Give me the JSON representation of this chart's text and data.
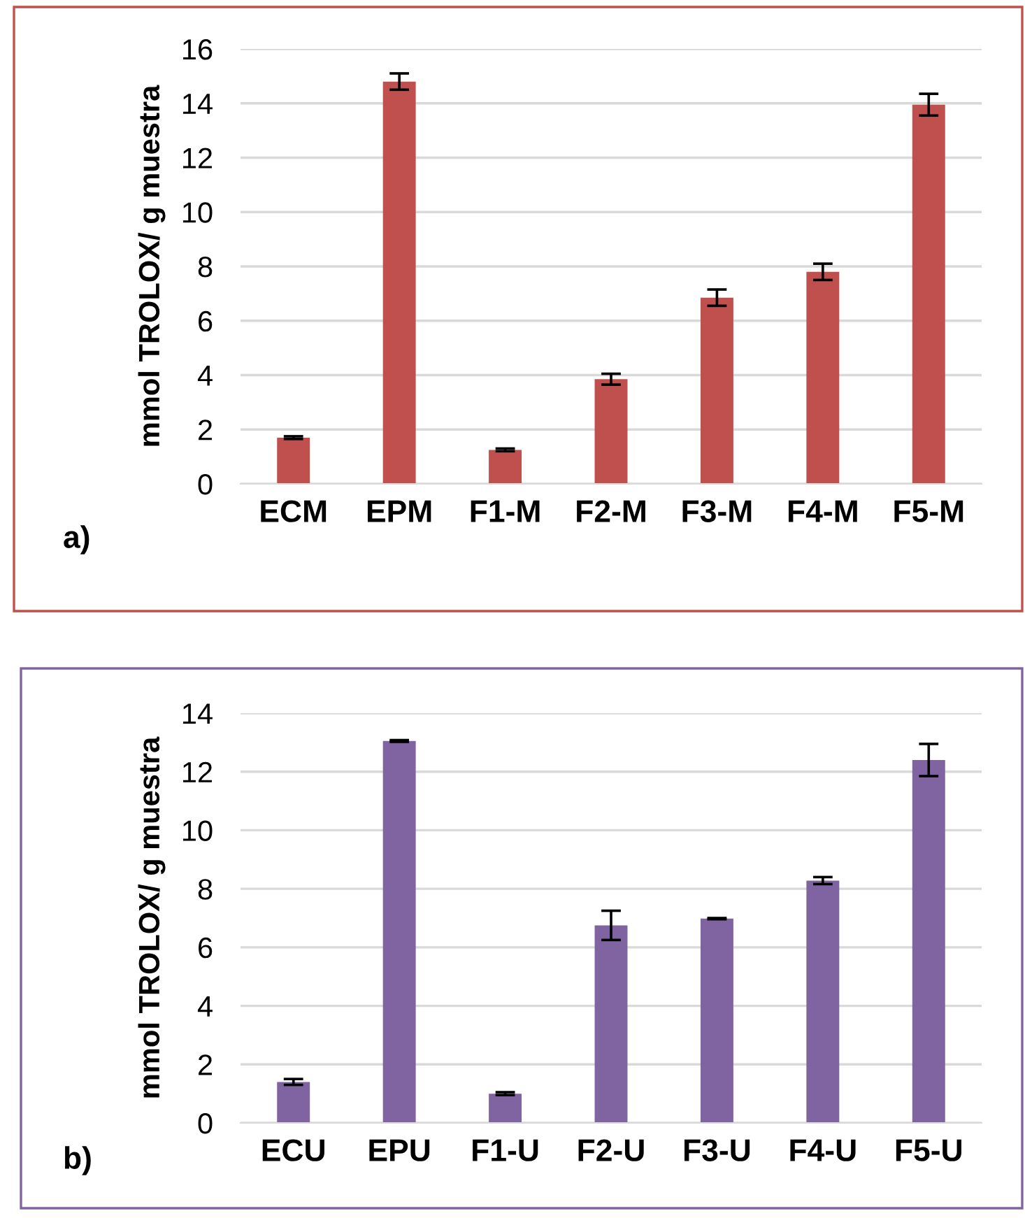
{
  "chart_data": [
    {
      "type": "bar",
      "ylabel": "mmol TROLOX/ g muestra",
      "categories": [
        "ECM",
        "EPM",
        "F1-M",
        "F2-M",
        "F3-M",
        "F4-M",
        "F5-M"
      ],
      "values": [
        1.7,
        14.8,
        1.25,
        3.85,
        6.85,
        7.8,
        13.95
      ],
      "errors": [
        0.05,
        0.3,
        0.05,
        0.2,
        0.3,
        0.3,
        0.4
      ],
      "color": "#c0504d",
      "ylim": [
        0,
        16
      ],
      "yticks": [
        0,
        2,
        4,
        6,
        8,
        10,
        12,
        14,
        16
      ],
      "grid": "y",
      "annotations": [
        "a)"
      ]
    },
    {
      "type": "bar",
      "ylabel": "mmol TROLOX/ g muestra",
      "categories": [
        "ECU",
        "EPU",
        "F1-U",
        "F2-U",
        "F3-U",
        "F4-U",
        "F5-U"
      ],
      "values": [
        1.4,
        13.05,
        1.0,
        6.75,
        6.98,
        8.28,
        12.4
      ],
      "errors": [
        0.1,
        0.03,
        0.05,
        0.5,
        0.02,
        0.12,
        0.55
      ],
      "color": "#8064a2",
      "ylim": [
        0,
        14
      ],
      "yticks": [
        0,
        2,
        4,
        6,
        8,
        10,
        12,
        14
      ],
      "grid": "y",
      "annotations": [
        "b)"
      ]
    }
  ]
}
